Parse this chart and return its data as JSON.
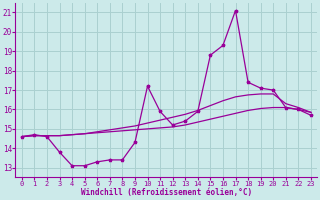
{
  "xlabel": "Windchill (Refroidissement éolien,°C)",
  "background_color": "#cceaea",
  "grid_color": "#aad0d0",
  "line_color": "#990099",
  "x_ticks": [
    0,
    1,
    2,
    3,
    4,
    5,
    6,
    7,
    8,
    9,
    10,
    11,
    12,
    13,
    14,
    15,
    16,
    17,
    18,
    19,
    20,
    21,
    22,
    23
  ],
  "y_ticks": [
    13,
    14,
    15,
    16,
    17,
    18,
    19,
    20,
    21
  ],
  "xlim": [
    -0.5,
    23.5
  ],
  "ylim": [
    12.5,
    21.5
  ],
  "series1_x": [
    0,
    1,
    2,
    3,
    4,
    5,
    6,
    7,
    8,
    9,
    10,
    11,
    12,
    13,
    14,
    15,
    16,
    17,
    18,
    19,
    20,
    21,
    22,
    23
  ],
  "series1_y": [
    14.6,
    14.7,
    14.6,
    13.8,
    13.1,
    13.1,
    13.3,
    13.4,
    13.4,
    14.3,
    17.2,
    15.9,
    15.2,
    15.4,
    15.9,
    18.8,
    19.3,
    21.1,
    17.4,
    17.1,
    17.0,
    16.1,
    16.0,
    15.7
  ],
  "series2_x": [
    0,
    1,
    2,
    3,
    4,
    5,
    6,
    7,
    8,
    9,
    10,
    11,
    12,
    13,
    14,
    15,
    16,
    17,
    18,
    19,
    20,
    21,
    22,
    23
  ],
  "series2_y": [
    14.6,
    14.65,
    14.65,
    14.65,
    14.7,
    14.75,
    14.8,
    14.85,
    14.9,
    14.95,
    15.0,
    15.05,
    15.1,
    15.2,
    15.35,
    15.5,
    15.65,
    15.8,
    15.95,
    16.05,
    16.1,
    16.1,
    16.0,
    15.85
  ],
  "series3_x": [
    0,
    1,
    2,
    3,
    4,
    5,
    6,
    7,
    8,
    9,
    10,
    11,
    12,
    13,
    14,
    15,
    16,
    17,
    18,
    19,
    20,
    21,
    22,
    23
  ],
  "series3_y": [
    14.6,
    14.65,
    14.65,
    14.65,
    14.7,
    14.75,
    14.85,
    14.95,
    15.05,
    15.15,
    15.3,
    15.45,
    15.6,
    15.75,
    15.95,
    16.2,
    16.45,
    16.65,
    16.75,
    16.8,
    16.8,
    16.3,
    16.1,
    15.85
  ]
}
